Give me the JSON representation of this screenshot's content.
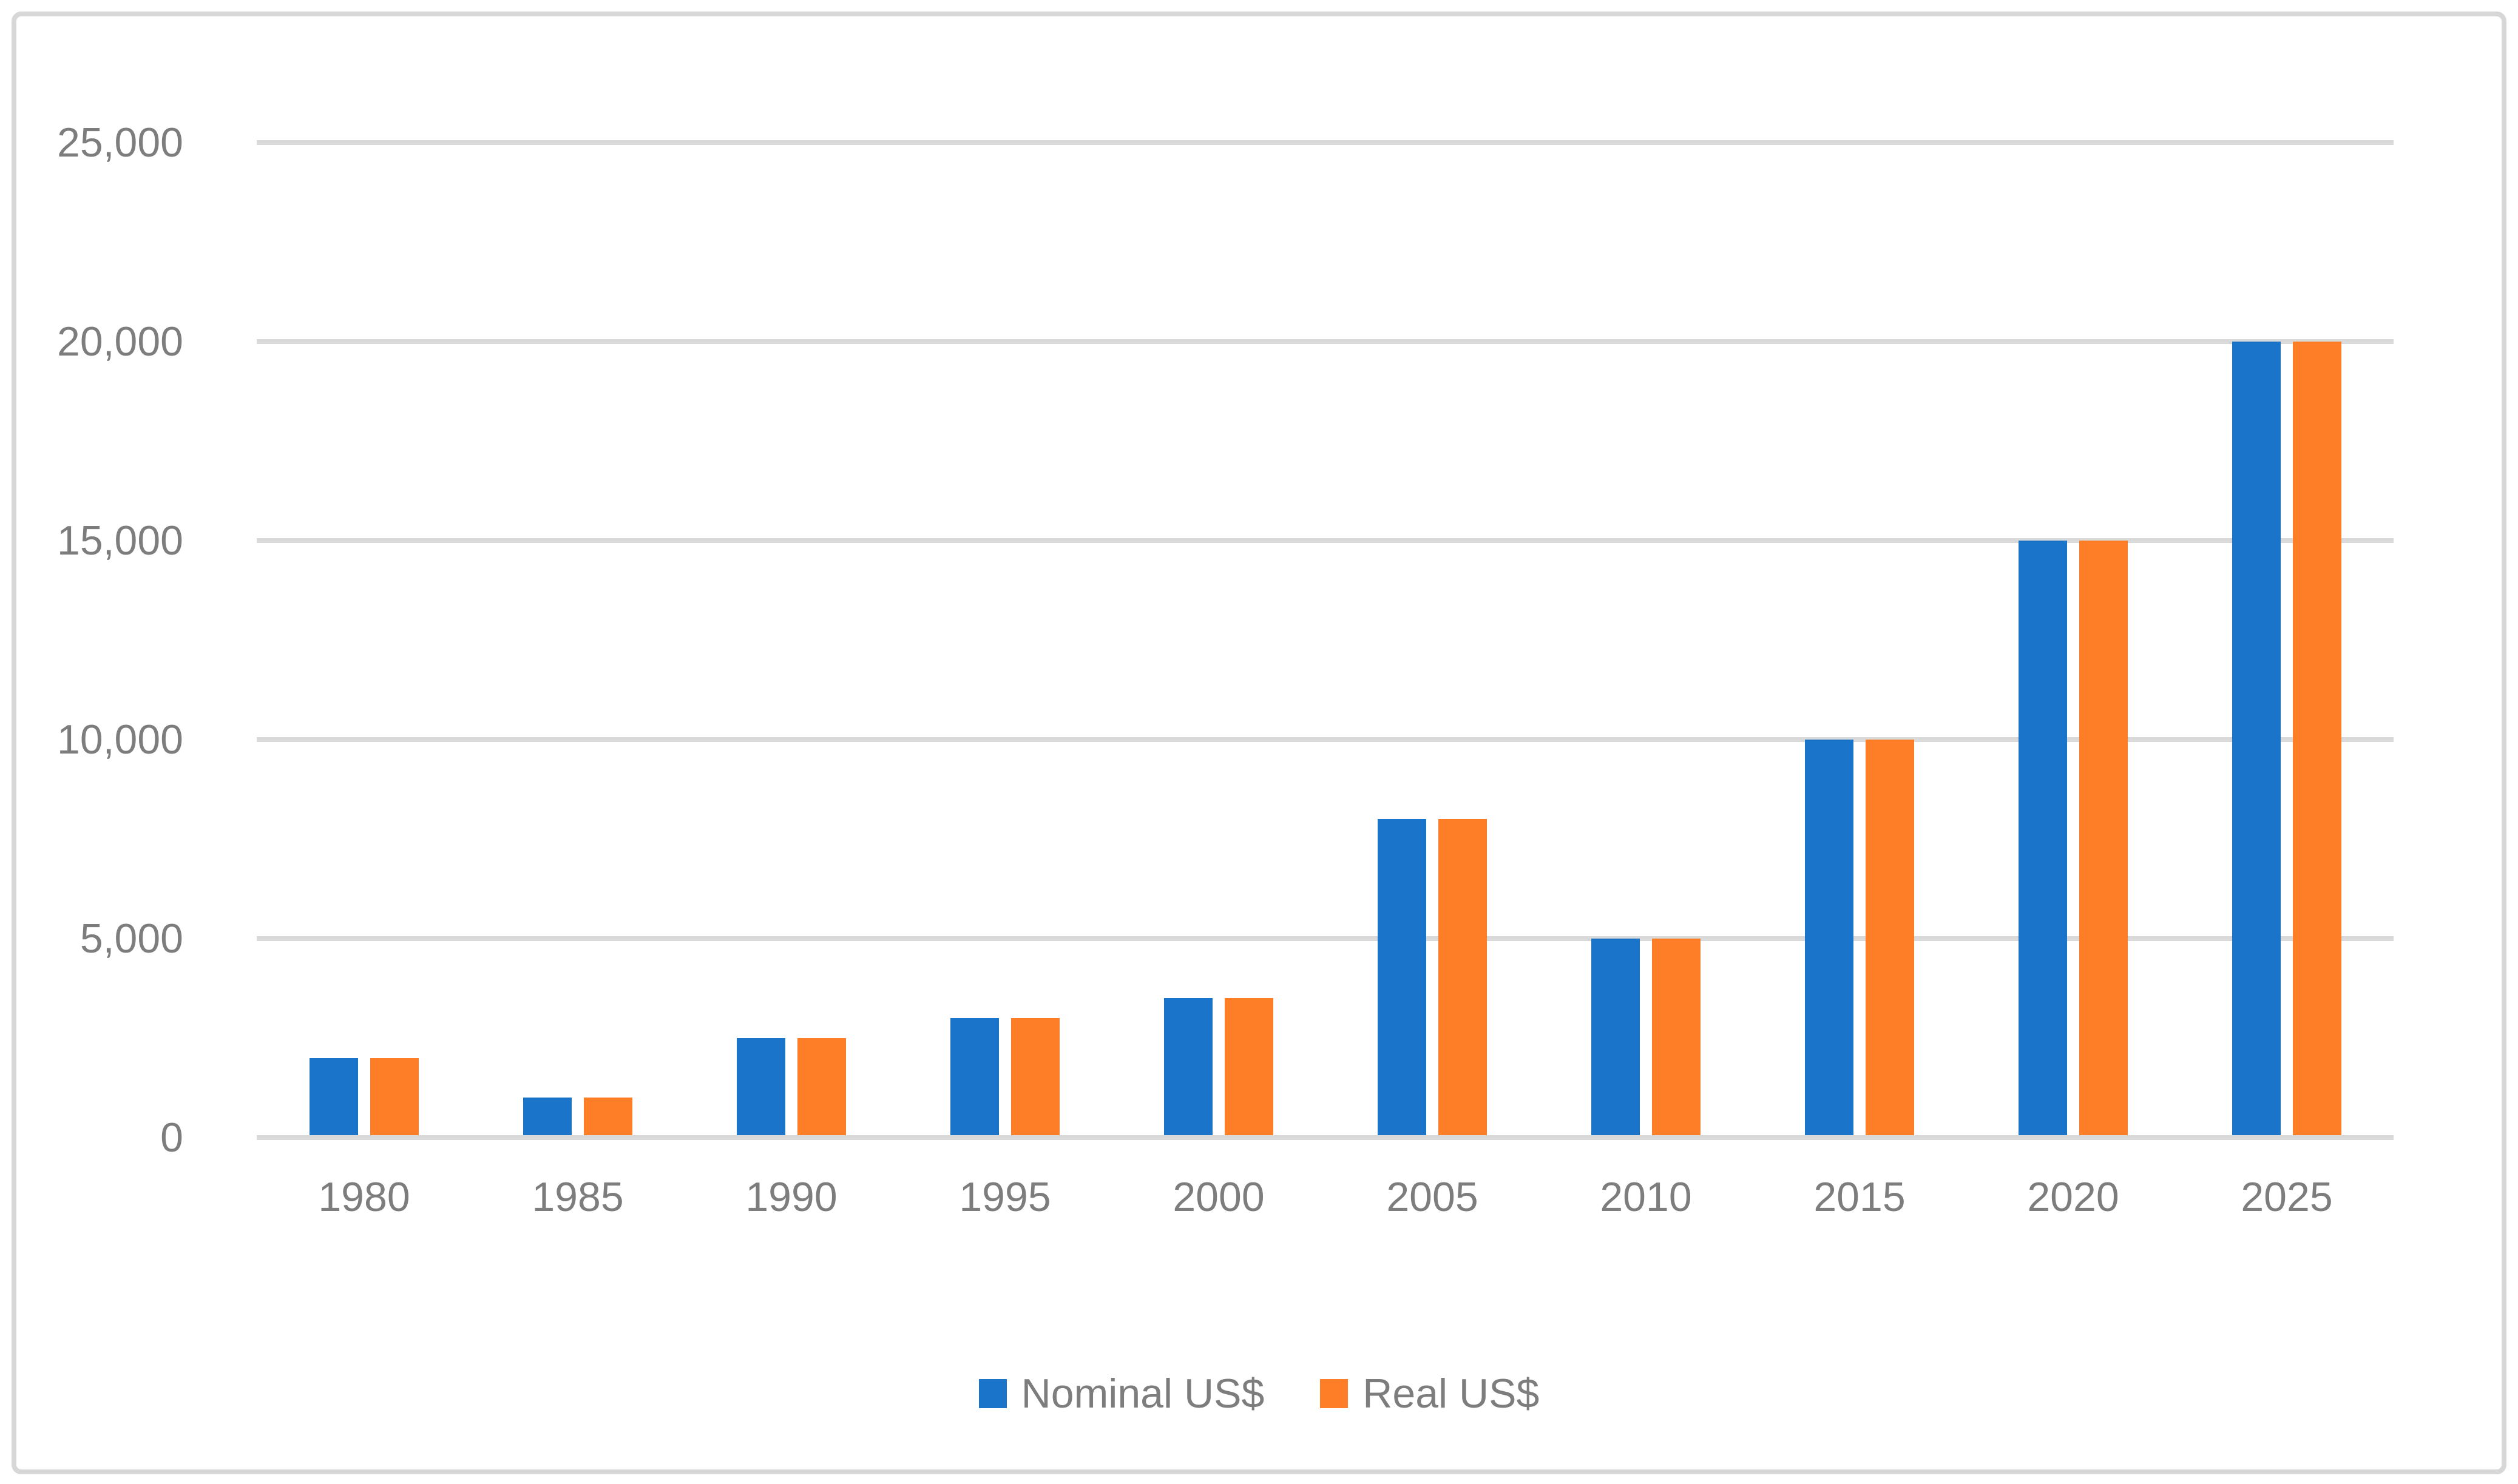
{
  "chart_data": {
    "type": "bar",
    "title": "",
    "categories": [
      "1980",
      "1985",
      "1990",
      "1995",
      "2000",
      "2005",
      "2010",
      "2015",
      "2020",
      "2025"
    ],
    "series": [
      {
        "name": "Nominal US$",
        "color": "#1a74c9",
        "values": [
          2000,
          1000,
          2500,
          3000,
          3500,
          8000,
          5000,
          10000,
          15000,
          20000
        ]
      },
      {
        "name": "Real US$",
        "color": "#fd7e27",
        "values": [
          2000,
          1000,
          2500,
          3000,
          3500,
          8000,
          5000,
          10000,
          15000,
          20000
        ]
      }
    ],
    "xlabel": "",
    "ylabel": "",
    "ylim": [
      0,
      25000
    ],
    "ytick_values": [
      0,
      5000,
      10000,
      15000,
      20000,
      25000
    ],
    "ytick_labels": [
      "0",
      "5,000",
      "10,000",
      "15,000",
      "20,000",
      "25,000"
    ],
    "grid": true,
    "legend_position": "bottom",
    "axis_text_color": "#7d7d7d",
    "gridline_color": "#d9d9d9",
    "frame_border_color": "#d7d7d7",
    "background_color": "#ffffff"
  }
}
